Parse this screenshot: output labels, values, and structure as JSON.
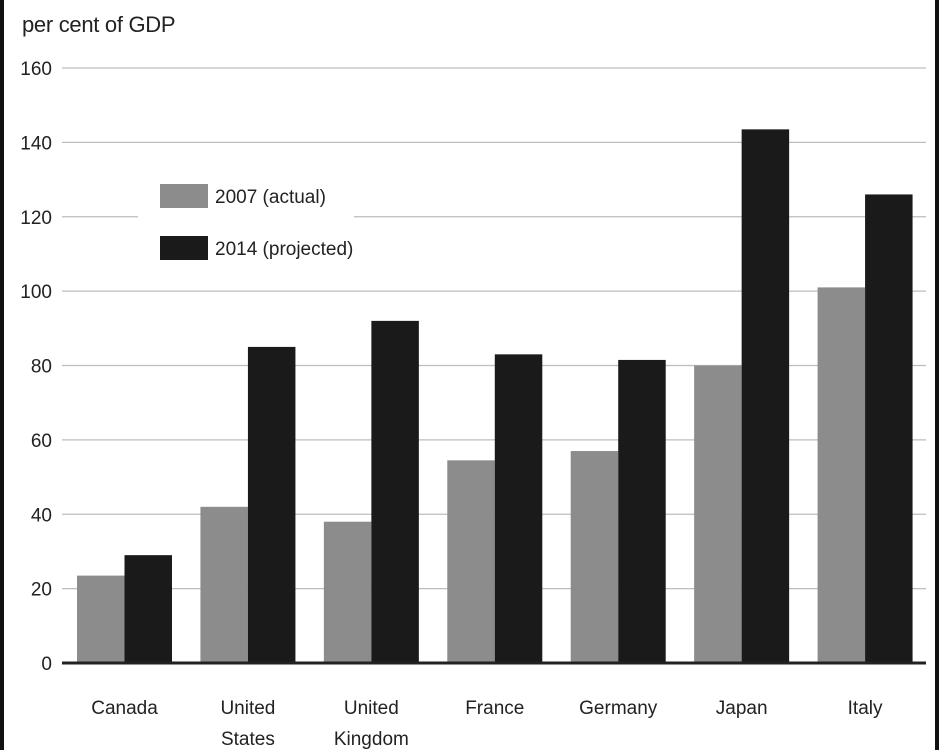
{
  "chart_data": {
    "type": "bar",
    "title": "",
    "ylabel": "per cent of GDP",
    "xlabel": "",
    "ylim": [
      0,
      160
    ],
    "yticks": [
      0,
      20,
      40,
      60,
      80,
      100,
      120,
      140,
      160
    ],
    "categories": [
      [
        "Canada"
      ],
      [
        "United",
        "States"
      ],
      [
        "United",
        "Kingdom"
      ],
      [
        "France"
      ],
      [
        "Germany"
      ],
      [
        "Japan"
      ],
      [
        "Italy"
      ]
    ],
    "series": [
      {
        "name": "2007 (actual)",
        "color": "#8c8c8c",
        "values": [
          23.5,
          42,
          38,
          54.5,
          57,
          80,
          101
        ]
      },
      {
        "name": "2014 (projected)",
        "color": "#1a1a1a",
        "values": [
          29,
          85,
          92,
          83,
          81.5,
          143.5,
          126
        ]
      }
    ],
    "grid": true,
    "legend": "top-left"
  }
}
